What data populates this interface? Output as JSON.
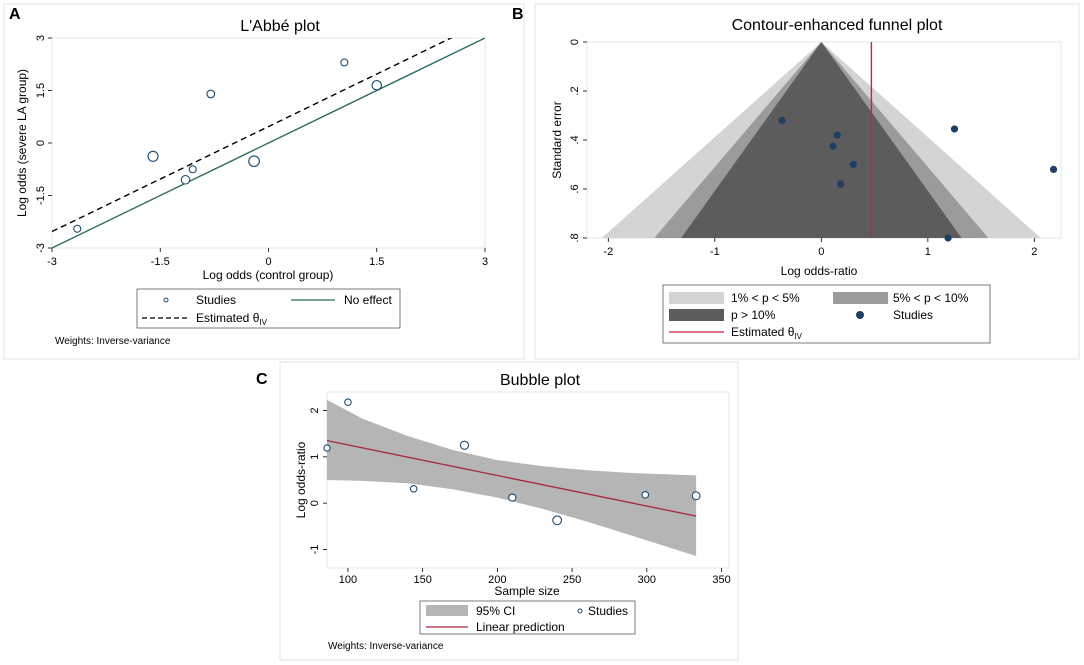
{
  "panels": {
    "A": {
      "letter": "A",
      "chart_data": {
        "type": "scatter",
        "title": "L'Abbé plot",
        "xlabel": "Log odds (control group)",
        "ylabel": "Log odds (severe LA group)",
        "xlim": [
          -3,
          3
        ],
        "ylim": [
          -3,
          3
        ],
        "xticks": [
          "-3",
          "-1.5",
          "0",
          "1.5",
          "3"
        ],
        "yticks": [
          "-3",
          "-1.5",
          "0",
          "1.5",
          "3"
        ],
        "points": [
          {
            "x": -2.65,
            "y": -2.45,
            "w": 1
          },
          {
            "x": -1.6,
            "y": -0.38,
            "w": 2
          },
          {
            "x": -1.15,
            "y": -1.05,
            "w": 1.5
          },
          {
            "x": -1.05,
            "y": -0.75,
            "w": 1
          },
          {
            "x": -0.8,
            "y": 1.4,
            "w": 1.2
          },
          {
            "x": -0.2,
            "y": -0.52,
            "w": 2.2
          },
          {
            "x": 1.05,
            "y": 2.3,
            "w": 1
          },
          {
            "x": 1.5,
            "y": 1.65,
            "w": 1.8
          }
        ],
        "no_effect": {
          "intercept": 0,
          "slope": 1
        },
        "estimated": {
          "intercept": 0.47,
          "slope": 1
        },
        "legend": [
          "Studies",
          "No effect",
          "Estimated θ",
          "IV"
        ],
        "note": "Weights: Inverse-variance",
        "colors": {
          "line": "#2e6b62",
          "points": "#1b4a6e"
        }
      }
    },
    "B": {
      "letter": "B",
      "chart_data": {
        "type": "scatter",
        "title": "Contour-enhanced funnel plot",
        "xlabel": "Log odds-ratio",
        "ylabel": "Standard error",
        "xlim": [
          -2.2,
          2.25
        ],
        "ylim": [
          0,
          0.8
        ],
        "xticks": [
          -2,
          -1,
          0,
          1,
          2
        ],
        "yticks": [
          "0",
          ".2",
          ".4",
          ".6",
          ".8"
        ],
        "points": [
          {
            "x": -0.37,
            "y": 0.32
          },
          {
            "x": 0.15,
            "y": 0.38
          },
          {
            "x": 0.11,
            "y": 0.425
          },
          {
            "x": 0.3,
            "y": 0.5
          },
          {
            "x": 0.18,
            "y": 0.58
          },
          {
            "x": 1.25,
            "y": 0.355
          },
          {
            "x": 2.18,
            "y": 0.52
          },
          {
            "x": 1.19,
            "y": 0.8
          }
        ],
        "estimate": 0.47,
        "legend": [
          "1% < p < 5%",
          "5% < p < 10%",
          "p > 10%",
          "Studies",
          "Estimated θ",
          "IV"
        ],
        "colors": {
          "band1": "#d4d4d4",
          "band2": "#9b9b9b",
          "band3": "#5c5c5c",
          "estimate": "#d11f3a",
          "points": "#1c3f63"
        }
      }
    },
    "C": {
      "letter": "C",
      "chart_data": {
        "type": "scatter",
        "title": "Bubble plot",
        "xlabel": "Sample size",
        "ylabel": "Log odds-ratio",
        "xlim": [
          86,
          355
        ],
        "ylim": [
          -1.4,
          2.4
        ],
        "xticks": [
          100,
          150,
          200,
          250,
          300,
          350
        ],
        "yticks": [
          -1,
          0,
          1,
          2
        ],
        "points": [
          {
            "x": 86,
            "y": 1.19,
            "w": 1
          },
          {
            "x": 100,
            "y": 2.18,
            "w": 1.1
          },
          {
            "x": 144,
            "y": 0.31,
            "w": 1.1
          },
          {
            "x": 178,
            "y": 1.25,
            "w": 1.6
          },
          {
            "x": 210,
            "y": 0.12,
            "w": 1.3
          },
          {
            "x": 240,
            "y": -0.37,
            "w": 1.8
          },
          {
            "x": 299,
            "y": 0.18,
            "w": 1.1
          },
          {
            "x": 333,
            "y": 0.16,
            "w": 1.5
          }
        ],
        "prediction": {
          "x": [
            86,
            333
          ],
          "y": [
            1.35,
            -0.28
          ]
        },
        "ci_upper": {
          "x": [
            86,
            110,
            140,
            170,
            200,
            230,
            260,
            290,
            333
          ],
          "y": [
            2.23,
            1.82,
            1.45,
            1.15,
            0.93,
            0.8,
            0.71,
            0.65,
            0.6
          ]
        },
        "ci_lower": {
          "x": [
            86,
            110,
            140,
            170,
            200,
            230,
            260,
            290,
            333
          ],
          "y": [
            0.5,
            0.48,
            0.43,
            0.3,
            0.12,
            -0.12,
            -0.4,
            -0.7,
            -1.14
          ]
        },
        "legend": [
          "95% CI",
          "Studies",
          "Linear prediction"
        ],
        "note": "Weights: Inverse-variance",
        "colors": {
          "ci": "#b5b5b5",
          "line": "#a5293a",
          "points": "#1b4a6e"
        }
      }
    }
  }
}
